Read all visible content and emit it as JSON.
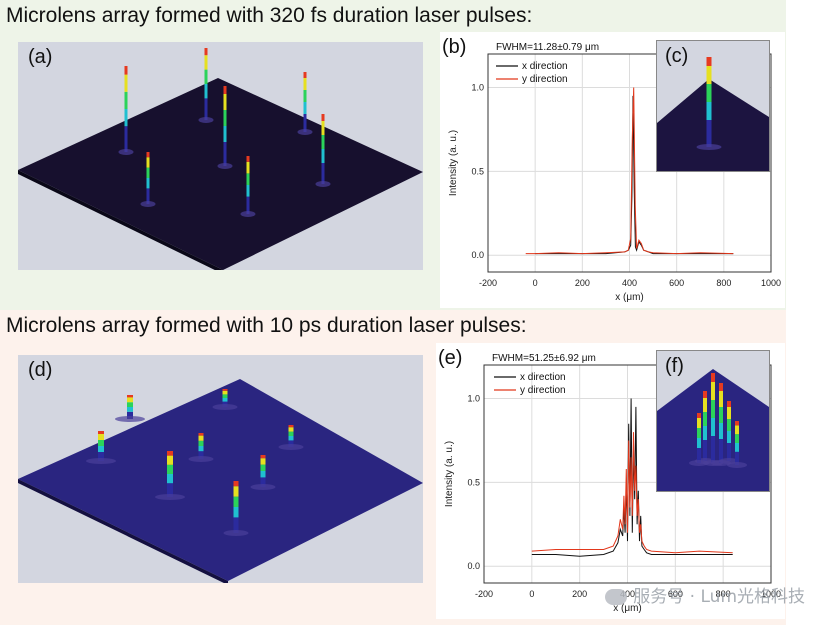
{
  "rows": [
    {
      "heading": "Microlens array formed with 320 fs duration laser pulses:",
      "surface_label": "(a)",
      "plot_label": "(b)",
      "inset_label": "(c)",
      "colors": {
        "band": "#eef4e8",
        "surface": "#17102e",
        "bg": "#d3d6e0"
      }
    },
    {
      "heading": "Microlens array formed with 10 ps duration laser pulses:",
      "surface_label": "(d)",
      "plot_label": "(e)",
      "inset_label": "(f)",
      "colors": {
        "band": "#fdf2ec",
        "surface": "#2a2580",
        "bg": "#d3d6e0"
      }
    }
  ],
  "chart_data": [
    {
      "type": "line",
      "annotation": "FWHM=11.28±0.79 μm",
      "xlabel": "x (μm)",
      "ylabel": "Intensity (a. u.)",
      "xlim": [
        -200,
        1000
      ],
      "ylim": [
        -0.1,
        1.2
      ],
      "xticks": [
        "-200",
        "0",
        "200",
        "400",
        "600",
        "800",
        "1000"
      ],
      "xtick_values": [
        -200,
        0,
        200,
        400,
        600,
        800,
        1000
      ],
      "yticks": [
        "0.0",
        "0.5",
        "1.0"
      ],
      "ytick_values": [
        0.0,
        0.5,
        1.0
      ],
      "grid": true,
      "legend": "top-left",
      "series": [
        {
          "name": "x direction",
          "color": "#111111",
          "x": [
            0,
            100,
            200,
            300,
            380,
            395,
            405,
            410,
            415,
            420,
            425,
            430,
            440,
            450,
            460,
            480,
            500,
            600,
            700,
            840
          ],
          "y": [
            0.01,
            0.01,
            0.01,
            0.01,
            0.02,
            0.03,
            0.06,
            0.35,
            0.95,
            0.4,
            0.05,
            0.03,
            0.08,
            0.06,
            0.03,
            0.02,
            0.01,
            0.01,
            0.01,
            0.01
          ]
        },
        {
          "name": "y direction",
          "color": "#e2371b",
          "x": [
            -40,
            0,
            100,
            200,
            300,
            380,
            395,
            405,
            412,
            418,
            424,
            430,
            440,
            450,
            460,
            480,
            500,
            600,
            700,
            840
          ],
          "y": [
            0.01,
            0.01,
            0.015,
            0.01,
            0.015,
            0.02,
            0.03,
            0.1,
            0.7,
            1.0,
            0.3,
            0.04,
            0.09,
            0.07,
            0.03,
            0.02,
            0.015,
            0.01,
            0.015,
            0.01
          ]
        }
      ]
    },
    {
      "type": "line",
      "annotation": "FWHM=51.25±6.92 μm",
      "xlabel": "x (μm)",
      "ylabel": "Intensity (a. u.)",
      "xlim": [
        -200,
        1000
      ],
      "ylim": [
        -0.1,
        1.2
      ],
      "xticks": [
        "-200",
        "0",
        "200",
        "400",
        "600",
        "800",
        "1000"
      ],
      "xtick_values": [
        -200,
        0,
        200,
        400,
        600,
        800,
        1000
      ],
      "yticks": [
        "0.0",
        "0.5",
        "1.0"
      ],
      "ytick_values": [
        0.0,
        0.5,
        1.0
      ],
      "grid": true,
      "legend": "top-right",
      "series": [
        {
          "name": "x direction",
          "color": "#111111",
          "x": [
            0,
            100,
            200,
            300,
            340,
            360,
            370,
            380,
            385,
            390,
            395,
            400,
            405,
            410,
            415,
            420,
            425,
            430,
            435,
            440,
            445,
            450,
            455,
            460,
            470,
            480,
            500,
            600,
            700,
            840
          ],
          "y": [
            0.07,
            0.07,
            0.06,
            0.07,
            0.09,
            0.14,
            0.22,
            0.18,
            0.35,
            0.2,
            0.5,
            0.15,
            0.85,
            0.3,
            1.0,
            0.2,
            0.7,
            0.4,
            0.95,
            0.25,
            0.45,
            0.15,
            0.3,
            0.12,
            0.1,
            0.08,
            0.07,
            0.07,
            0.07,
            0.07
          ]
        },
        {
          "name": "y direction",
          "color": "#e2371b",
          "x": [
            0,
            100,
            200,
            300,
            340,
            360,
            370,
            380,
            385,
            390,
            395,
            400,
            405,
            410,
            415,
            420,
            425,
            430,
            435,
            440,
            445,
            450,
            455,
            460,
            470,
            480,
            500,
            600,
            700,
            840
          ],
          "y": [
            0.09,
            0.1,
            0.1,
            0.1,
            0.12,
            0.18,
            0.28,
            0.22,
            0.42,
            0.25,
            0.58,
            0.2,
            0.75,
            0.35,
            0.65,
            0.3,
            0.8,
            0.45,
            0.6,
            0.3,
            0.4,
            0.2,
            0.25,
            0.15,
            0.12,
            0.1,
            0.09,
            0.08,
            0.09,
            0.08
          ]
        }
      ]
    }
  ],
  "watermark": "服务号 · Lum光格科技"
}
